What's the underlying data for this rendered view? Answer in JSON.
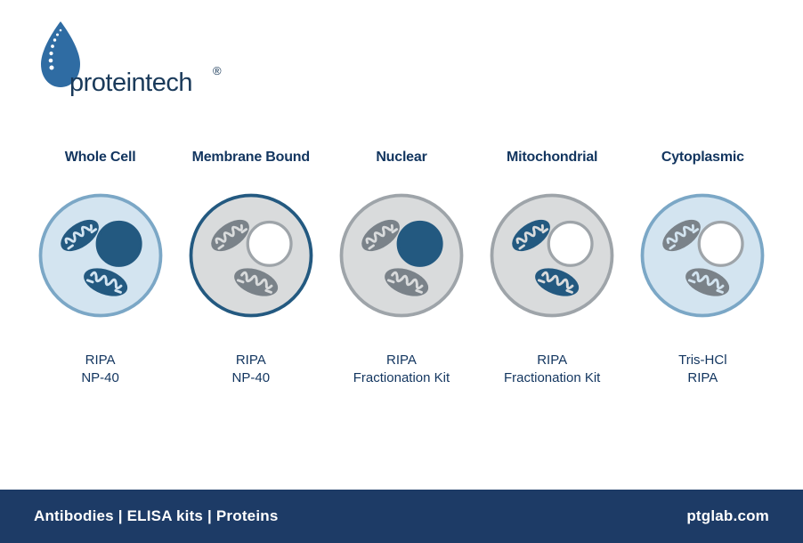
{
  "brand": {
    "name": "proteintech",
    "trademark": "®",
    "drop_fill": "#2f6ca3",
    "drop_highlight_stroke": "#ffffff",
    "wordmark_color": "#1a3a5a",
    "wordmark_fontsize": 28
  },
  "layout": {
    "page_bg": "#ffffff",
    "title_color": "#12355f",
    "reagent_color": "#12355f",
    "title_fontsize": 16,
    "reagent_fontsize": 15,
    "cell_diameter": 150
  },
  "palette": {
    "blue_light": "#d3e4f0",
    "blue_dark": "#235980",
    "blue_stroke": "#7ba7c6",
    "gray_light": "#d9dbdc",
    "gray_dark": "#7a8289",
    "gray_stroke": "#9ea4a9",
    "white": "#ffffff"
  },
  "cells": [
    {
      "key": "whole_cell",
      "title": "Whole Cell",
      "cell_fill": "#d3e4f0",
      "cell_stroke": "#7ba7c6",
      "nucleus_fill": "#235980",
      "nucleus_stroke": "#235980",
      "mito_fill": "#235980",
      "mito_stroke": "#235980",
      "mito_cristae": "#d3e4f0",
      "reagents": [
        "RIPA",
        "NP-40"
      ]
    },
    {
      "key": "membrane_bound",
      "title": "Membrane Bound",
      "cell_fill": "#d9dbdc",
      "cell_stroke": "#235980",
      "nucleus_fill": "#ffffff",
      "nucleus_stroke": "#9ea4a9",
      "mito_fill": "#7a8289",
      "mito_stroke": "#7a8289",
      "mito_cristae": "#d9dbdc",
      "reagents": [
        "RIPA",
        "NP-40"
      ]
    },
    {
      "key": "nuclear",
      "title": "Nuclear",
      "cell_fill": "#d9dbdc",
      "cell_stroke": "#9ea4a9",
      "nucleus_fill": "#235980",
      "nucleus_stroke": "#235980",
      "mito_fill": "#7a8289",
      "mito_stroke": "#7a8289",
      "mito_cristae": "#d9dbdc",
      "reagents": [
        "RIPA",
        "Fractionation Kit"
      ]
    },
    {
      "key": "mitochondrial",
      "title": "Mitochondrial",
      "cell_fill": "#d9dbdc",
      "cell_stroke": "#9ea4a9",
      "nucleus_fill": "#ffffff",
      "nucleus_stroke": "#9ea4a9",
      "mito_fill": "#235980",
      "mito_stroke": "#235980",
      "mito_cristae": "#d9dbdc",
      "reagents": [
        "RIPA",
        "Fractionation Kit"
      ]
    },
    {
      "key": "cytoplasmic",
      "title": "Cytoplasmic",
      "cell_fill": "#d3e4f0",
      "cell_stroke": "#7ba7c6",
      "nucleus_fill": "#ffffff",
      "nucleus_stroke": "#9ea4a9",
      "mito_fill": "#7a8289",
      "mito_stroke": "#7a8289",
      "mito_cristae": "#d3e4f0",
      "reagents": [
        "Tris-HCl",
        "RIPA"
      ]
    }
  ],
  "footer": {
    "bg": "#1d3b66",
    "left_text": "Antibodies | ELISA kits | Proteins",
    "right_text": "ptglab.com",
    "text_color": "#ffffff",
    "height": 60
  }
}
